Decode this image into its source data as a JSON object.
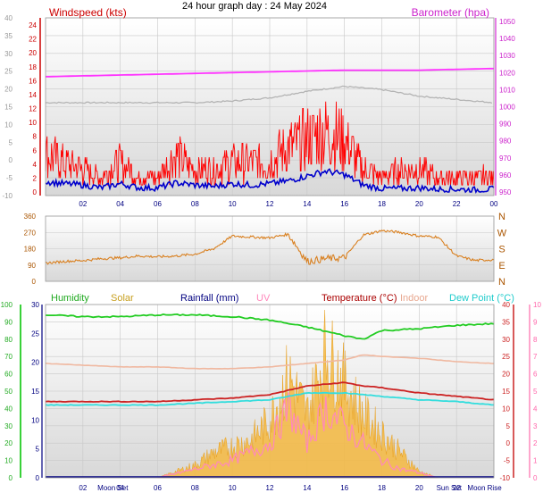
{
  "page_title": "24 hour graph day : 24 May 2024",
  "colors": {
    "windspeed": "#ff0000",
    "windavg": "#0000cc",
    "barometer": "#ff33ff",
    "indoor_press_grey": "#b4b4b4",
    "direction": "#d98020",
    "humidity": "#22cc22",
    "solar": "#f5b840",
    "rainfall": "#000080",
    "uv": "#ff88bb",
    "temperature": "#cc2222",
    "indoor": "#f0b8a0",
    "dewpoint": "#33dddd",
    "plot_bg_top": "#ffffff",
    "plot_bg_bottom": "#dcdcdc"
  },
  "chart_data": [
    {
      "id": "wind",
      "type": "line",
      "legend": {
        "left": "Windspeed (kts)",
        "right": "Barometer (hpa)"
      },
      "x_ticks": [
        "02",
        "04",
        "06",
        "08",
        "10",
        "12",
        "14",
        "16",
        "18",
        "20",
        "22",
        "00"
      ],
      "axes": {
        "outer_left": {
          "ticks": [
            "40",
            "35",
            "30",
            "25",
            "20",
            "15",
            "10",
            "5",
            "0",
            "-5",
            "-10"
          ],
          "ylim": [
            -10,
            40
          ]
        },
        "inner_left": {
          "ticks": [
            "24",
            "22",
            "20",
            "18",
            "16",
            "14",
            "12",
            "10",
            "8",
            "6",
            "4",
            "2",
            "0"
          ],
          "ylim": [
            0,
            24
          ]
        },
        "right": {
          "ticks": [
            "1050",
            "1040",
            "1030",
            "1020",
            "1010",
            "1000",
            "990",
            "980",
            "970",
            "960",
            "950"
          ],
          "ylim": [
            945,
            1050
          ]
        }
      },
      "series": [
        {
          "key": "gust",
          "unit": "kts",
          "x": [
            0,
            1,
            2,
            3,
            4,
            5,
            6,
            7,
            8,
            9,
            10,
            11,
            12,
            13,
            14,
            15,
            16,
            17,
            18,
            19,
            20,
            21,
            22,
            23,
            24
          ],
          "values": [
            5,
            4,
            3,
            2,
            4,
            2,
            2,
            5,
            3,
            3,
            4,
            4,
            4,
            6,
            7,
            8,
            7,
            3,
            2,
            3,
            3,
            2,
            2,
            2,
            2
          ]
        },
        {
          "key": "average",
          "unit": "kts",
          "x": [
            0,
            1,
            2,
            3,
            4,
            5,
            6,
            7,
            8,
            9,
            10,
            11,
            12,
            13,
            14,
            15,
            16,
            17,
            18,
            19,
            20,
            21,
            22,
            23,
            24
          ],
          "values": [
            1.5,
            1.2,
            1.0,
            0.6,
            1.2,
            0.6,
            0.6,
            1.3,
            1.0,
            0.8,
            1.2,
            1.0,
            1.2,
            1.6,
            2.3,
            3.0,
            2.5,
            1.0,
            0.5,
            0.5,
            0.6,
            0.4,
            0.4,
            0.3,
            0.4
          ]
        },
        {
          "key": "barometer",
          "unit": "hPa",
          "x": [
            0,
            2,
            4,
            6,
            8,
            10,
            12,
            14,
            16,
            18,
            20,
            22,
            24
          ],
          "values": [
            1016,
            1016.5,
            1017,
            1017.5,
            1018,
            1018.5,
            1019,
            1019.5,
            1020,
            1020,
            1020,
            1020.5,
            1021
          ]
        },
        {
          "key": "grey_trace",
          "x": [
            0,
            2,
            4,
            6,
            8,
            10,
            12,
            14,
            16,
            18,
            20,
            22,
            24
          ],
          "values": [
            1000,
            1000,
            1000,
            1000,
            1000,
            1001,
            1003,
            1007,
            1010,
            1008,
            1004,
            1002,
            1000
          ]
        }
      ]
    },
    {
      "id": "direction",
      "type": "scatter",
      "axes": {
        "left": {
          "ticks": [
            "360",
            "270",
            "180",
            "90",
            "0"
          ],
          "ylim": [
            0,
            360
          ]
        },
        "right": {
          "ticks": [
            "N",
            "W",
            "S",
            "E",
            "N"
          ]
        }
      },
      "series": [
        {
          "key": "wind_direction",
          "unit": "deg",
          "x": [
            0,
            1,
            2,
            3,
            4,
            5,
            6,
            7,
            8,
            9,
            10,
            11,
            12,
            13,
            14,
            15,
            16,
            17,
            18,
            19,
            20,
            21,
            22,
            23,
            24
          ],
          "values": [
            100,
            110,
            115,
            125,
            130,
            140,
            135,
            140,
            150,
            180,
            250,
            245,
            240,
            260,
            110,
            125,
            130,
            255,
            280,
            270,
            250,
            245,
            140,
            115,
            120
          ]
        }
      ]
    },
    {
      "id": "atmos",
      "type": "line",
      "legend": [
        "Humidity",
        "Solar",
        "Rainfall (mm)",
        "UV",
        "Temperature (°C)",
        "Indoor",
        "Dew Point (°C)"
      ],
      "x_ticks": [
        "02",
        "Moon Set",
        "04",
        "06",
        "08",
        "10",
        "12",
        "14",
        "16",
        "18",
        "20",
        "Sun Set",
        "22",
        "Moon Rise"
      ],
      "axes": {
        "humidity_left": {
          "ticks": [
            "100",
            "90",
            "80",
            "70",
            "60",
            "50",
            "40",
            "30",
            "20",
            "10",
            "0"
          ],
          "ylim": [
            0,
            100
          ]
        },
        "rain_left": {
          "ticks": [
            "30",
            "25",
            "20",
            "15",
            "10",
            "5",
            "0"
          ],
          "ylim": [
            0,
            30
          ]
        },
        "temp_right": {
          "ticks": [
            "40",
            "35",
            "30",
            "25",
            "20",
            "15",
            "10",
            "5",
            "0",
            "-5",
            "-10"
          ],
          "ylim": [
            -10,
            40
          ]
        },
        "uv_right": {
          "ticks": [
            "10",
            "9",
            "8",
            "7",
            "6",
            "5",
            "4",
            "3",
            "2",
            "1",
            "0"
          ],
          "ylim": [
            0,
            10
          ]
        }
      },
      "series": [
        {
          "key": "humidity",
          "unit": "%",
          "x": [
            0,
            2,
            4,
            6,
            8,
            10,
            12,
            14,
            16,
            17,
            18,
            20,
            22,
            24
          ],
          "values": [
            94,
            93,
            93,
            94,
            94,
            93,
            91,
            87,
            82,
            80,
            85,
            86,
            88,
            89
          ]
        },
        {
          "key": "temperature",
          "unit": "°C",
          "x": [
            0,
            2,
            4,
            6,
            8,
            10,
            12,
            14,
            16,
            17,
            18,
            20,
            22,
            24
          ],
          "values": [
            12.0,
            12.0,
            12.0,
            12.0,
            12.5,
            13.0,
            14.0,
            16.5,
            17.5,
            16.5,
            16.0,
            14.5,
            13.5,
            12.5
          ]
        },
        {
          "key": "dewpoint",
          "unit": "°C",
          "x": [
            0,
            2,
            4,
            6,
            8,
            10,
            12,
            14,
            16,
            17,
            18,
            20,
            22,
            24
          ],
          "values": [
            11.0,
            11.0,
            11.0,
            11.0,
            11.5,
            12.0,
            12.5,
            14.5,
            14.5,
            14.0,
            13.5,
            12.5,
            12.0,
            11.0
          ]
        },
        {
          "key": "indoor",
          "unit": "°C",
          "x": [
            0,
            2,
            4,
            6,
            8,
            10,
            12,
            14,
            16,
            17,
            18,
            20,
            22,
            24
          ],
          "values": [
            23,
            22.5,
            22,
            22,
            21.5,
            21.5,
            22,
            23,
            24,
            25.5,
            25,
            24.5,
            23.5,
            23
          ]
        },
        {
          "key": "solar",
          "unit": "rel",
          "x": [
            6,
            7,
            8,
            9,
            10,
            11,
            12,
            13,
            14,
            15,
            16,
            17,
            18,
            19,
            20,
            21
          ],
          "values": [
            0,
            1,
            2,
            4,
            5,
            6,
            9,
            16,
            10,
            20,
            15,
            10,
            7,
            4,
            1,
            0
          ]
        },
        {
          "key": "uv",
          "unit": "index",
          "x": [
            6,
            8,
            10,
            12,
            13,
            14,
            15,
            16,
            17,
            18,
            19,
            20,
            21
          ],
          "values": [
            0,
            0.5,
            1,
            2,
            4,
            2,
            4,
            3,
            2,
            1,
            0.5,
            0.3,
            0
          ]
        },
        {
          "key": "rainfall",
          "unit": "mm",
          "x": [
            0,
            24
          ],
          "values": [
            0,
            0
          ]
        }
      ]
    }
  ]
}
